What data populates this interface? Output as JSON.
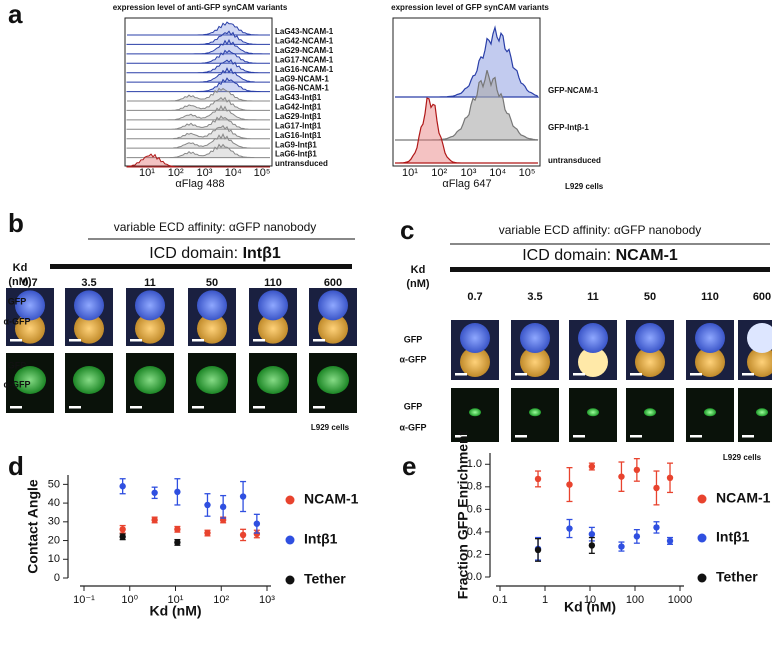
{
  "panel_a": {
    "letter": "a",
    "left_title": "expression level of anti-GFP synCAM variants",
    "left_labels": [
      "LaG43-NCAM-1",
      "LaG42-NCAM-1",
      "LaG29-NCAM-1",
      "LaG17-NCAM-1",
      "LaG16-NCAM-1",
      "LaG9-NCAM-1",
      "LaG6-NCAM-1",
      "LaG43-Intβ1",
      "LaG42-Intβ1",
      "LaG29-Intβ1",
      "LaG17-Intβ1",
      "LaG16-Intβ1",
      "LaG9-Intβ1",
      "LaG6-Intβ1",
      "untransduced"
    ],
    "left_xticks": [
      "10¹",
      "10²",
      "10³",
      "10⁴",
      "10⁵"
    ],
    "left_xlabel": "αFlag 488",
    "right_title": "expression level of GFP synCAM variants",
    "right_labels": [
      "GFP-NCAM-1",
      "GFP-Intβ-1",
      "untransduced"
    ],
    "right_xticks": [
      "10¹",
      "10²",
      "10³",
      "10⁴",
      "10⁵"
    ],
    "right_xlabel": "αFlag 647",
    "cell_line": "L929 cells"
  },
  "panel_b": {
    "letter": "b",
    "header": "variable ECD affinity: αGFP nanobody",
    "icd_prefix": "ICD domain: ",
    "icd": "Intβ1",
    "kd_label": [
      "Kd",
      "(nM)"
    ],
    "kds": [
      "0.7",
      "3.5",
      "11",
      "50",
      "110",
      "600"
    ],
    "row_labels": [
      "GFP",
      "α-GFP",
      "GFP",
      "α-GFP"
    ],
    "cell_line": "L929 cells"
  },
  "panel_c": {
    "letter": "c",
    "header": "variable ECD affinity: αGFP nanobody",
    "icd_prefix": "ICD domain: ",
    "icd": "NCAM-1",
    "kd_label": [
      "Kd",
      "(nM)"
    ],
    "kds": [
      "0.7",
      "3.5",
      "11",
      "50",
      "110",
      "600"
    ],
    "row_labels": [
      "GFP",
      "α-GFP",
      "GFP",
      "α-GFP"
    ],
    "cell_line": "L929 cells"
  },
  "chart_data": [
    {
      "type": "scatter",
      "letter": "d",
      "ylabel": "Contact Angle",
      "xlabel": "Kd (nM)",
      "log_x": true,
      "x": [
        0.7,
        3.5,
        11,
        50,
        110,
        300,
        600
      ],
      "xlim": [
        0.1,
        1000
      ],
      "xticks": [
        {
          "value": 0.1,
          "label": "10⁻¹"
        },
        {
          "value": 1,
          "label": "10⁰"
        },
        {
          "value": 10,
          "label": "10¹"
        },
        {
          "value": 100,
          "label": "10²"
        },
        {
          "value": 1000,
          "label": "10³"
        }
      ],
      "ylim": [
        0,
        55
      ],
      "yticks": [
        0,
        10,
        20,
        30,
        40,
        50
      ],
      "series": [
        {
          "name": "NCAM-1",
          "color": "#e8432e",
          "values": [
            26,
            31,
            26,
            24,
            31,
            23,
            23.5
          ],
          "errors": [
            2,
            1.5,
            1.5,
            1.5,
            1.5,
            3,
            2
          ]
        },
        {
          "name": "Intβ1",
          "color": "#2f4fe0",
          "values": [
            49,
            45.5,
            46,
            39,
            38,
            43.5,
            29
          ],
          "errors": [
            4,
            3,
            7,
            6,
            6,
            8,
            5
          ]
        },
        {
          "name": "Tether",
          "color": "#111111",
          "values": [
            22,
            null,
            19,
            null,
            null,
            null,
            null
          ],
          "errors": [
            1.5,
            null,
            1.5,
            null,
            null,
            null,
            null
          ]
        }
      ]
    },
    {
      "type": "scatter",
      "letter": "e",
      "ylabel": "Fraction GFP Enrichment",
      "xlabel": "Kd (nM)",
      "log_x": true,
      "x": [
        0.7,
        3.5,
        11,
        50,
        110,
        300,
        600
      ],
      "xlim": [
        0.1,
        1000
      ],
      "xticks": [
        0.1,
        1,
        10,
        100,
        1000
      ],
      "ylim": [
        0,
        1.1
      ],
      "yticks": [
        {
          "value": 0,
          "label": "0.0"
        },
        0.2,
        0.4,
        0.6,
        0.8,
        {
          "value": 1,
          "label": "1.0"
        }
      ],
      "series": [
        {
          "name": "NCAM-1",
          "color": "#e8432e",
          "values": [
            0.87,
            0.82,
            0.98,
            0.89,
            0.95,
            0.79,
            0.88
          ],
          "errors": [
            0.07,
            0.15,
            0.03,
            0.13,
            0.1,
            0.15,
            0.13
          ]
        },
        {
          "name": "Intβ1",
          "color": "#2f4fe0",
          "values": [
            0.25,
            0.43,
            0.38,
            0.27,
            0.36,
            0.44,
            0.32
          ],
          "errors": [
            0.1,
            0.08,
            0.06,
            0.04,
            0.06,
            0.05,
            0.03
          ]
        },
        {
          "name": "Tether",
          "color": "#111111",
          "values": [
            0.24,
            null,
            0.28,
            null,
            null,
            null,
            null
          ],
          "errors": [
            0.1,
            null,
            0.07,
            null,
            null,
            null,
            null
          ]
        }
      ]
    }
  ]
}
